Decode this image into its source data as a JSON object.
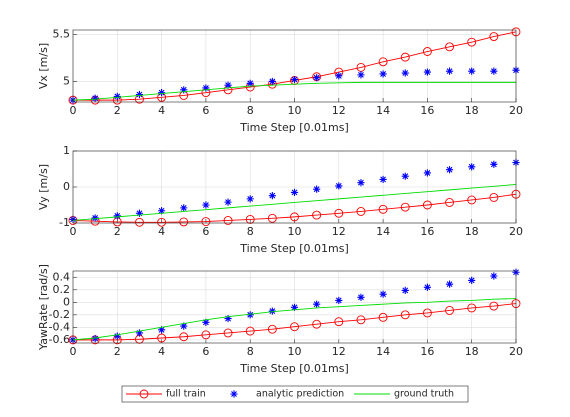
{
  "chart_data": [
    {
      "type": "line",
      "xlabel": "Time Step [0.01ms]",
      "ylabel": "Vx [m/s]",
      "x": [
        0,
        1,
        2,
        3,
        4,
        5,
        6,
        7,
        8,
        9,
        10,
        11,
        12,
        13,
        14,
        15,
        16,
        17,
        18,
        19,
        20
      ],
      "xlim": [
        0,
        20
      ],
      "xticks": [
        0,
        2,
        4,
        6,
        8,
        10,
        12,
        14,
        16,
        18,
        20
      ],
      "ylim": [
        4.78,
        5.55
      ],
      "yticks": [
        5,
        5.5
      ],
      "grid": true,
      "legend": "bottom",
      "series": [
        {
          "name": "full train",
          "color": "#ff0000",
          "marker": "circle",
          "line": true,
          "values": [
            4.8,
            4.8,
            4.8,
            4.81,
            4.83,
            4.85,
            4.88,
            4.91,
            4.94,
            4.97,
            5.01,
            5.05,
            5.1,
            5.15,
            5.21,
            5.26,
            5.32,
            5.37,
            5.42,
            5.48,
            5.53
          ]
        },
        {
          "name": "analytic prediction",
          "color": "#0000ff",
          "marker": "star",
          "line": false,
          "values": [
            4.8,
            4.82,
            4.84,
            4.86,
            4.88,
            4.91,
            4.93,
            4.96,
            4.98,
            5.0,
            5.02,
            5.04,
            5.06,
            5.07,
            5.08,
            5.09,
            5.1,
            5.11,
            5.11,
            5.11,
            5.12
          ]
        },
        {
          "name": "ground truth",
          "color": "#00dd00",
          "marker": "none",
          "line": true,
          "values": [
            4.8,
            4.81,
            4.83,
            4.85,
            4.87,
            4.89,
            4.91,
            4.93,
            4.95,
            4.96,
            4.97,
            4.98,
            4.985,
            4.99,
            4.99,
            4.99,
            4.99,
            4.99,
            4.99,
            4.99,
            4.99
          ]
        }
      ]
    },
    {
      "type": "line",
      "xlabel": "Time Step [0.01ms]",
      "ylabel": "Vy [m/s]",
      "x": [
        0,
        1,
        2,
        3,
        4,
        5,
        6,
        7,
        8,
        9,
        10,
        11,
        12,
        13,
        14,
        15,
        16,
        17,
        18,
        19,
        20
      ],
      "xlim": [
        0,
        20
      ],
      "xticks": [
        0,
        2,
        4,
        6,
        8,
        10,
        12,
        14,
        16,
        18,
        20
      ],
      "ylim": [
        -1,
        1
      ],
      "yticks": [
        -1,
        0,
        1
      ],
      "grid": true,
      "series": [
        {
          "name": "full train",
          "color": "#ff0000",
          "marker": "circle",
          "line": true,
          "values": [
            -0.93,
            -0.95,
            -0.97,
            -0.98,
            -0.98,
            -0.97,
            -0.96,
            -0.93,
            -0.9,
            -0.87,
            -0.83,
            -0.78,
            -0.73,
            -0.68,
            -0.62,
            -0.56,
            -0.5,
            -0.43,
            -0.36,
            -0.29,
            -0.2
          ]
        },
        {
          "name": "analytic prediction",
          "color": "#0000ff",
          "marker": "star",
          "line": false,
          "values": [
            -0.9,
            -0.86,
            -0.8,
            -0.73,
            -0.66,
            -0.58,
            -0.5,
            -0.42,
            -0.33,
            -0.24,
            -0.15,
            -0.06,
            0.03,
            0.12,
            0.21,
            0.3,
            0.39,
            0.48,
            0.56,
            0.63,
            0.68
          ]
        },
        {
          "name": "ground truth",
          "color": "#00dd00",
          "marker": "none",
          "line": true,
          "values": [
            -0.93,
            -0.88,
            -0.83,
            -0.78,
            -0.73,
            -0.68,
            -0.63,
            -0.58,
            -0.53,
            -0.48,
            -0.43,
            -0.38,
            -0.33,
            -0.28,
            -0.23,
            -0.18,
            -0.13,
            -0.08,
            -0.03,
            0.02,
            0.07
          ]
        }
      ]
    },
    {
      "type": "line",
      "xlabel": "Time Step [0.01ms]",
      "ylabel": "YawRate [rad/s]",
      "x": [
        0,
        1,
        2,
        3,
        4,
        5,
        6,
        7,
        8,
        9,
        10,
        11,
        12,
        13,
        14,
        15,
        16,
        17,
        18,
        19,
        20
      ],
      "xlim": [
        0,
        20
      ],
      "xticks": [
        0,
        2,
        4,
        6,
        8,
        10,
        12,
        14,
        16,
        18,
        20
      ],
      "ylim": [
        -0.65,
        0.5
      ],
      "yticks": [
        -0.6,
        -0.4,
        -0.2,
        0,
        0.2,
        0.4
      ],
      "grid": true,
      "series": [
        {
          "name": "full train",
          "color": "#ff0000",
          "marker": "circle",
          "line": true,
          "values": [
            -0.6,
            -0.6,
            -0.6,
            -0.59,
            -0.57,
            -0.55,
            -0.52,
            -0.49,
            -0.46,
            -0.43,
            -0.39,
            -0.35,
            -0.31,
            -0.28,
            -0.24,
            -0.2,
            -0.17,
            -0.13,
            -0.09,
            -0.06,
            -0.02
          ]
        },
        {
          "name": "analytic prediction",
          "color": "#0000ff",
          "marker": "star",
          "line": false,
          "values": [
            -0.6,
            -0.58,
            -0.54,
            -0.49,
            -0.44,
            -0.38,
            -0.32,
            -0.26,
            -0.2,
            -0.14,
            -0.08,
            -0.03,
            0.03,
            0.08,
            0.13,
            0.19,
            0.24,
            0.29,
            0.35,
            0.42,
            0.48
          ]
        },
        {
          "name": "ground truth",
          "color": "#00dd00",
          "marker": "none",
          "line": true,
          "values": [
            -0.6,
            -0.57,
            -0.52,
            -0.46,
            -0.4,
            -0.34,
            -0.28,
            -0.23,
            -0.19,
            -0.15,
            -0.12,
            -0.09,
            -0.07,
            -0.05,
            -0.03,
            -0.01,
            0,
            0.02,
            0.03,
            0.05,
            0.06
          ]
        }
      ]
    }
  ]
}
